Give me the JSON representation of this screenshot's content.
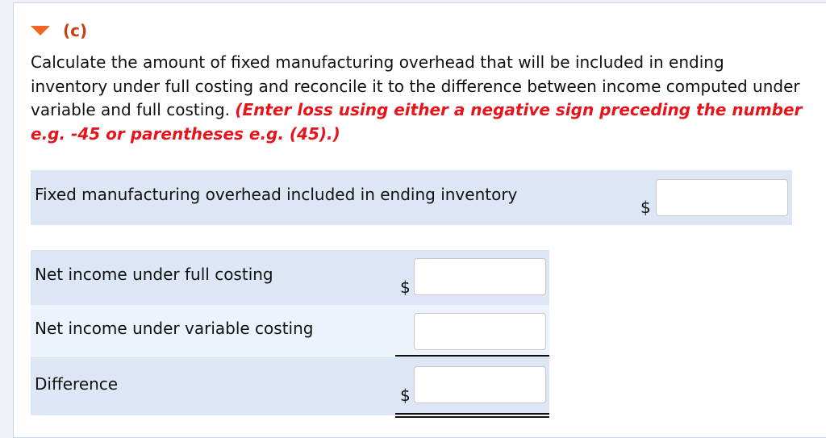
{
  "part": {
    "label": "(c)",
    "icon": "triangle-down-icon",
    "color": "#f26522"
  },
  "question": {
    "text": "Calculate the amount of fixed manufacturing overhead that will be included in ending inventory under full costing and reconcile it to the difference between income computed under variable and full costing.",
    "instruction": "(Enter loss using either a negative sign preceding the number e.g. -45 or parentheses e.g. (45).)"
  },
  "rows": [
    {
      "label": "Fixed manufacturing overhead included in ending inventory",
      "currency": "$",
      "value": ""
    },
    {
      "label": "Net income under full costing",
      "currency": "$",
      "value": ""
    },
    {
      "label": "Net income under variable costing",
      "currency": "",
      "value": ""
    },
    {
      "label": "Difference",
      "currency": "$",
      "value": ""
    }
  ]
}
